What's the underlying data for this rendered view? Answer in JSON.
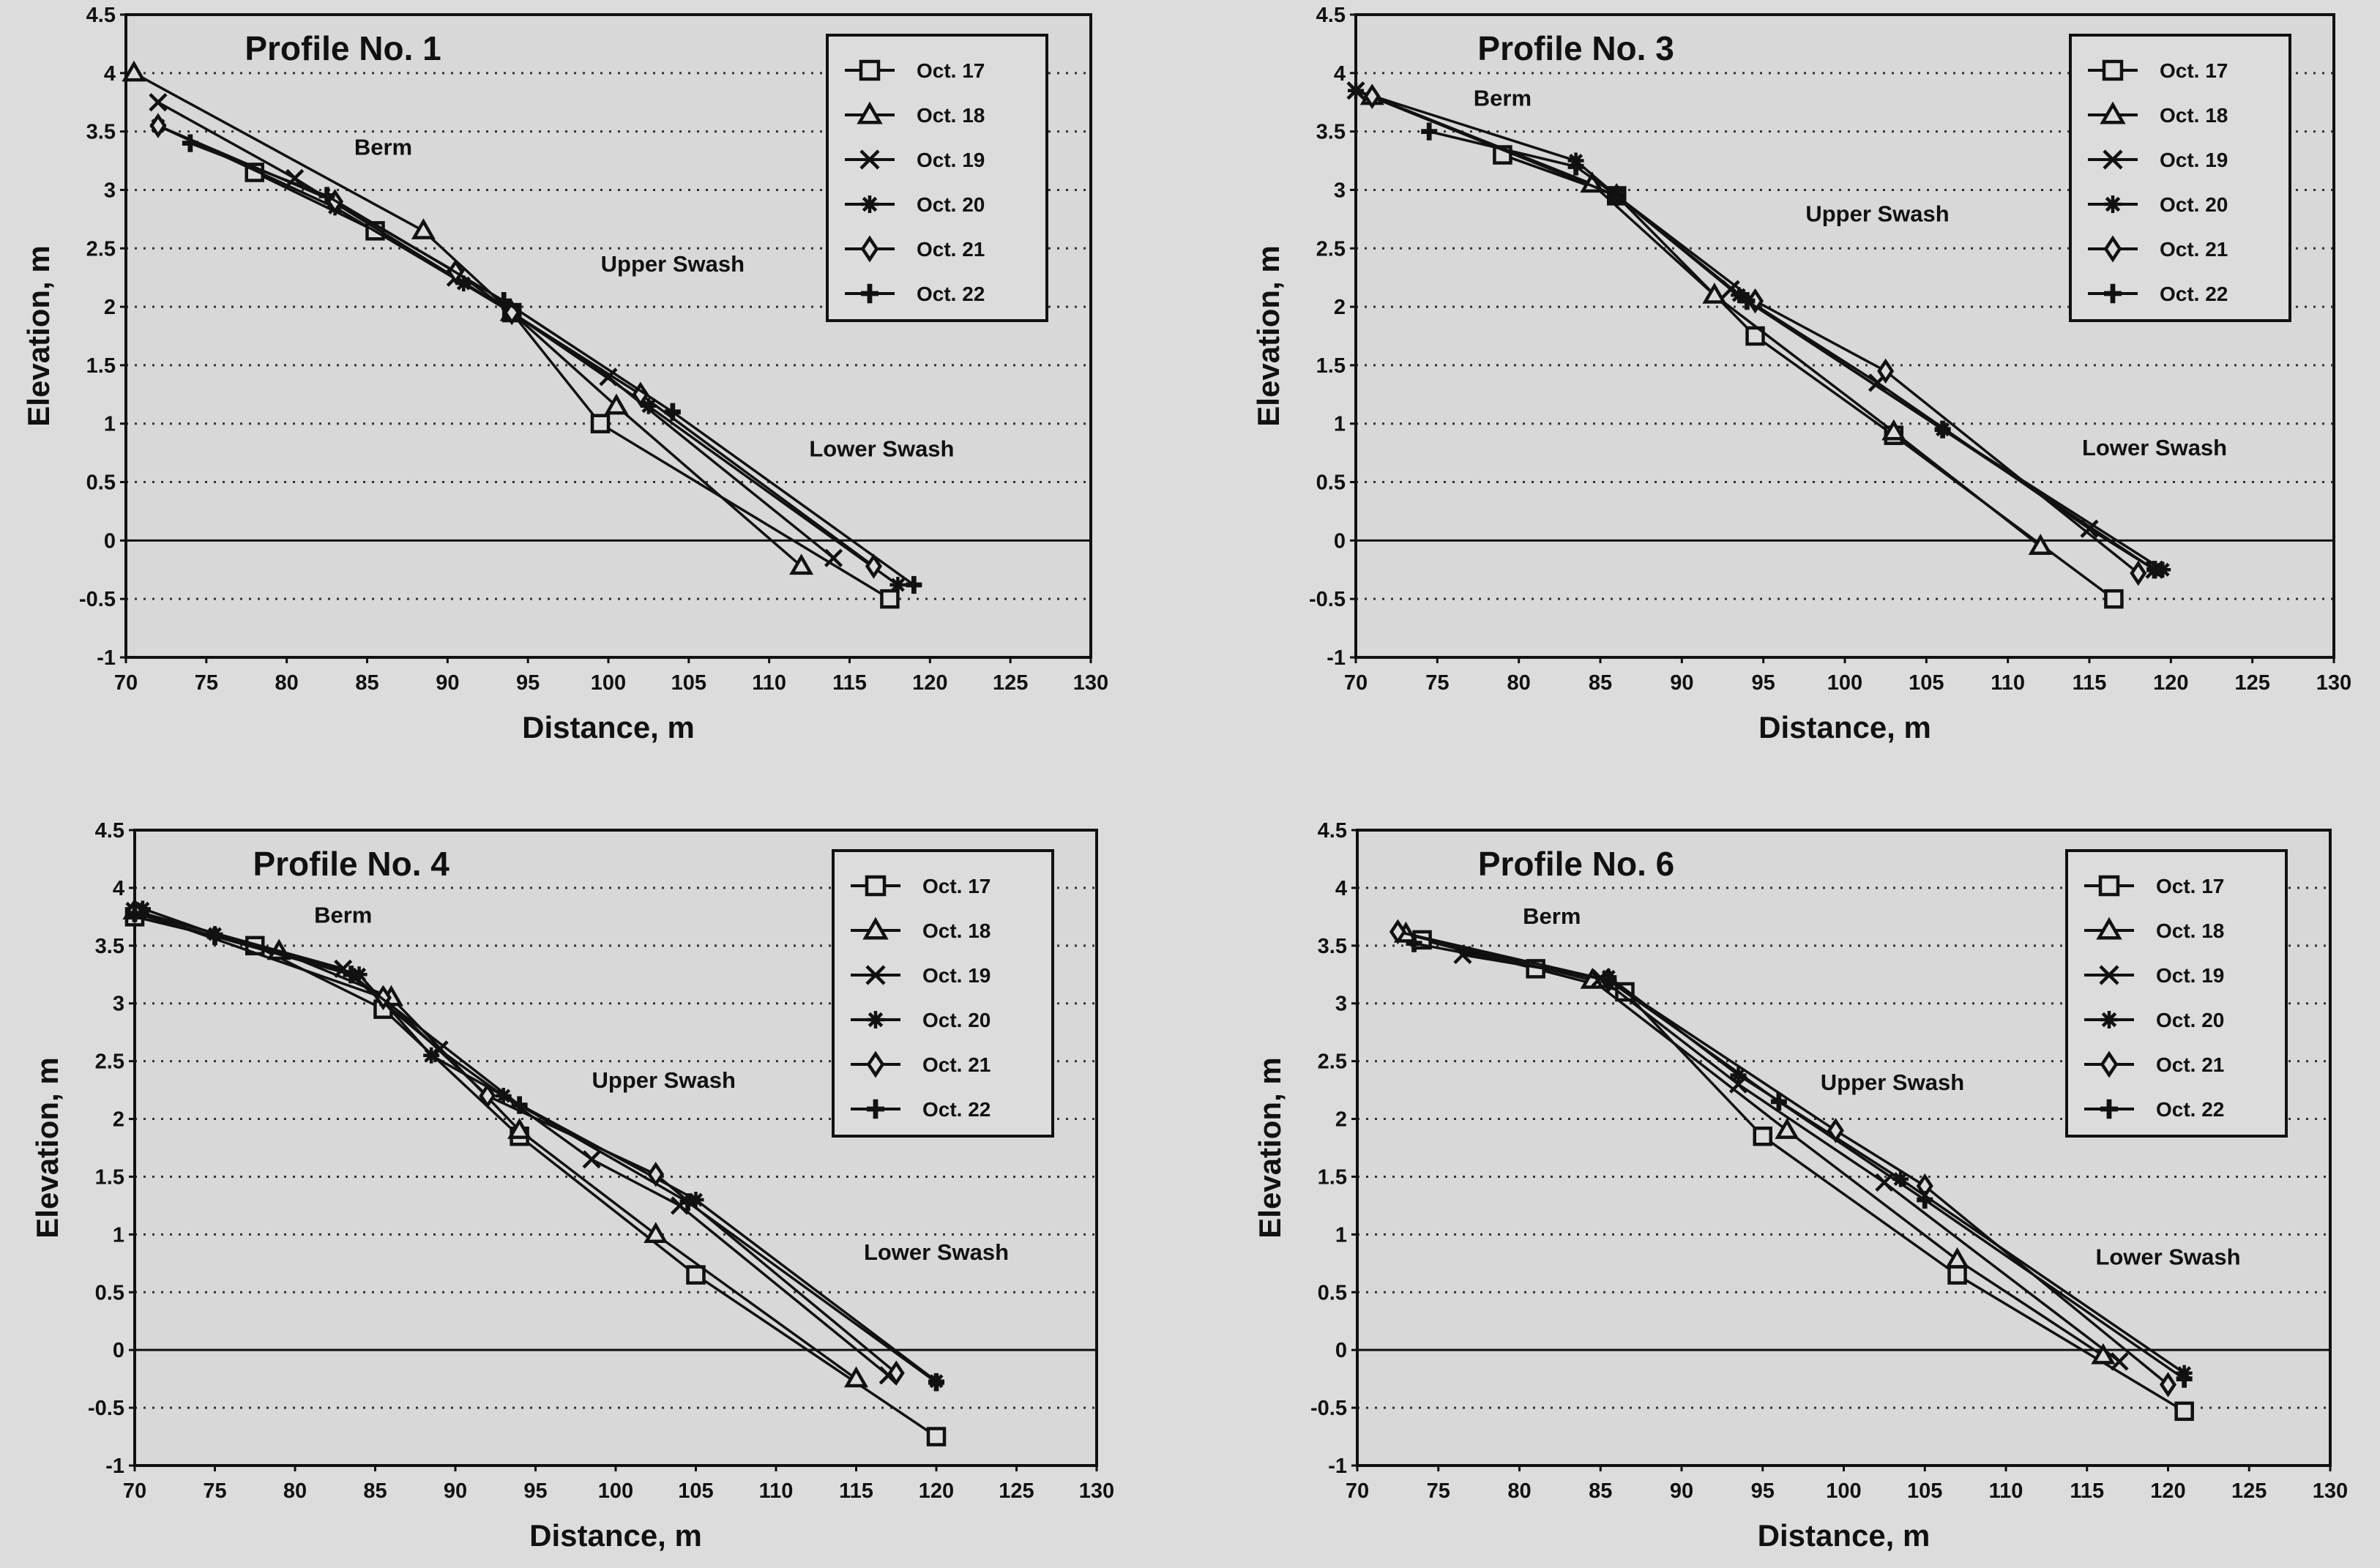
{
  "colors": {
    "background": "#dcdcdc",
    "ink": "#111111",
    "grid": "#333333"
  },
  "chart_data": [
    {
      "type": "line",
      "title": "Profile No. 1",
      "xlabel": "Distance, m",
      "ylabel": "Elevation, m",
      "xlim": [
        70,
        130
      ],
      "ylim": [
        -1,
        4.5
      ],
      "xticks": [
        70,
        75,
        80,
        85,
        90,
        95,
        100,
        105,
        110,
        115,
        120,
        125,
        130
      ],
      "yticks": [
        -1,
        -0.5,
        0,
        0.5,
        1,
        1.5,
        2,
        2.5,
        3,
        3.5,
        4,
        4.5
      ],
      "grid": "horizontal dotted",
      "legend": "top-right",
      "annotations": [
        {
          "text": "Berm",
          "x": 86,
          "y": 3.3
        },
        {
          "text": "Upper Swash",
          "x": 104,
          "y": 2.3
        },
        {
          "text": "Lower Swash",
          "x": 117,
          "y": 0.72
        }
      ],
      "series": [
        {
          "name": "Oct. 17",
          "marker": "square",
          "x": [
            78,
            85.5,
            94,
            99.5,
            117.5
          ],
          "y": [
            3.15,
            2.65,
            1.95,
            1.0,
            -0.5
          ]
        },
        {
          "name": "Oct. 18",
          "marker": "triangle",
          "x": [
            70.5,
            88.5,
            94,
            100.5,
            112
          ],
          "y": [
            4.0,
            2.65,
            1.95,
            1.15,
            -0.22
          ]
        },
        {
          "name": "Oct. 19",
          "marker": "x",
          "x": [
            72,
            80.5,
            90.5,
            94,
            100,
            114
          ],
          "y": [
            3.75,
            3.1,
            2.25,
            1.95,
            1.4,
            -0.15
          ]
        },
        {
          "name": "Oct. 20",
          "marker": "asterisk",
          "x": [
            72,
            83,
            91,
            94,
            102.5,
            118
          ],
          "y": [
            3.55,
            2.85,
            2.2,
            1.95,
            1.15,
            -0.38
          ]
        },
        {
          "name": "Oct. 21",
          "marker": "diamond",
          "x": [
            72,
            83,
            90.5,
            94,
            102,
            116.5
          ],
          "y": [
            3.55,
            2.9,
            2.3,
            1.95,
            1.25,
            -0.22
          ]
        },
        {
          "name": "Oct. 22",
          "marker": "plus",
          "x": [
            74,
            82.5,
            93.5,
            104,
            119
          ],
          "y": [
            3.4,
            2.95,
            2.05,
            1.1,
            -0.38
          ]
        }
      ]
    },
    {
      "type": "line",
      "title": "Profile No. 3",
      "xlabel": "Distance, m",
      "ylabel": "Elevation, m",
      "xlim": [
        70,
        130
      ],
      "ylim": [
        -1,
        4.5
      ],
      "xticks": [
        70,
        75,
        80,
        85,
        90,
        95,
        100,
        105,
        110,
        115,
        120,
        125,
        130
      ],
      "yticks": [
        -1,
        -0.5,
        0,
        0.5,
        1,
        1.5,
        2,
        2.5,
        3,
        3.5,
        4,
        4.5
      ],
      "grid": "horizontal dotted",
      "legend": "top-right",
      "annotations": [
        {
          "text": "Berm",
          "x": 79,
          "y": 3.72
        },
        {
          "text": "Upper Swash",
          "x": 102,
          "y": 2.73
        },
        {
          "text": "Lower Swash",
          "x": 119,
          "y": 0.73
        }
      ],
      "series": [
        {
          "name": "Oct. 17",
          "marker": "square",
          "x": [
            79,
            86,
            94.5,
            103,
            116.5
          ],
          "y": [
            3.3,
            2.95,
            1.75,
            0.9,
            -0.5
          ]
        },
        {
          "name": "Oct. 18",
          "marker": "triangle",
          "x": [
            71,
            84.5,
            92,
            103,
            112
          ],
          "y": [
            3.8,
            3.05,
            2.1,
            0.93,
            -0.05
          ]
        },
        {
          "name": "Oct. 19",
          "marker": "x",
          "x": [
            70,
            86,
            93,
            102,
            115,
            119
          ],
          "y": [
            3.85,
            2.95,
            2.15,
            1.35,
            0.1,
            -0.25
          ]
        },
        {
          "name": "Oct. 20",
          "marker": "asterisk",
          "x": [
            70,
            83.5,
            86,
            93.5,
            106,
            119.5
          ],
          "y": [
            3.85,
            3.25,
            2.95,
            2.1,
            0.95,
            -0.25
          ]
        },
        {
          "name": "Oct. 21",
          "marker": "diamond",
          "x": [
            71,
            86,
            94.5,
            102.5,
            118
          ],
          "y": [
            3.8,
            2.95,
            2.05,
            1.45,
            -0.28
          ]
        },
        {
          "name": "Oct. 22",
          "marker": "plus",
          "x": [
            74.5,
            83.5,
            86,
            94,
            106,
            119
          ],
          "y": [
            3.5,
            3.2,
            2.95,
            2.05,
            0.95,
            -0.25
          ]
        }
      ]
    },
    {
      "type": "line",
      "title": "Profile No. 4",
      "xlabel": "Distance, m",
      "ylabel": "Elevation, m",
      "xlim": [
        70,
        130
      ],
      "ylim": [
        -1,
        4.5
      ],
      "xticks": [
        70,
        75,
        80,
        85,
        90,
        95,
        100,
        105,
        110,
        115,
        120,
        125,
        130
      ],
      "yticks": [
        -1,
        -0.5,
        0,
        0.5,
        1,
        1.5,
        2,
        2.5,
        3,
        3.5,
        4,
        4.5
      ],
      "grid": "horizontal dotted",
      "legend": "top-right",
      "annotations": [
        {
          "text": "Berm",
          "x": 83,
          "y": 3.7
        },
        {
          "text": "Upper Swash",
          "x": 103,
          "y": 2.27
        },
        {
          "text": "Lower Swash",
          "x": 120,
          "y": 0.78
        }
      ],
      "series": [
        {
          "name": "Oct. 17",
          "marker": "square",
          "x": [
            70,
            77.5,
            85.5,
            94,
            105,
            120
          ],
          "y": [
            3.75,
            3.5,
            2.95,
            1.85,
            0.65,
            -0.75
          ]
        },
        {
          "name": "Oct. 18",
          "marker": "triangle",
          "x": [
            70,
            79,
            86,
            94,
            102.5,
            115
          ],
          "y": [
            3.8,
            3.45,
            3.05,
            1.9,
            1.0,
            -0.25
          ]
        },
        {
          "name": "Oct. 19",
          "marker": "x",
          "x": [
            70,
            83,
            89,
            98.5,
            104,
            117
          ],
          "y": [
            3.8,
            3.3,
            2.6,
            1.65,
            1.25,
            -0.22
          ]
        },
        {
          "name": "Oct. 20",
          "marker": "asterisk",
          "x": [
            70.5,
            75,
            84,
            88.5,
            93,
            105,
            120
          ],
          "y": [
            3.82,
            3.6,
            3.25,
            2.55,
            2.2,
            1.3,
            -0.27
          ]
        },
        {
          "name": "Oct. 21",
          "marker": "diamond",
          "x": [
            70,
            85.5,
            92,
            102.5,
            117.5
          ],
          "y": [
            3.8,
            3.05,
            2.2,
            1.52,
            -0.2
          ]
        },
        {
          "name": "Oct. 22",
          "marker": "plus",
          "x": [
            70,
            75,
            83.5,
            94,
            104.5,
            120
          ],
          "y": [
            3.78,
            3.58,
            3.25,
            2.12,
            1.28,
            -0.28
          ]
        }
      ]
    },
    {
      "type": "line",
      "title": "Profile No. 6",
      "xlabel": "Distance, m",
      "ylabel": "Elevation, m",
      "xlim": [
        70,
        130
      ],
      "ylim": [
        -1,
        4.5
      ],
      "xticks": [
        70,
        75,
        80,
        85,
        90,
        95,
        100,
        105,
        110,
        115,
        120,
        125,
        130
      ],
      "yticks": [
        -1,
        -0.5,
        0,
        0.5,
        1,
        1.5,
        2,
        2.5,
        3,
        3.5,
        4,
        4.5
      ],
      "grid": "horizontal dotted",
      "legend": "top-right",
      "annotations": [
        {
          "text": "Berm",
          "x": 82,
          "y": 3.69
        },
        {
          "text": "Upper Swash",
          "x": 103,
          "y": 2.25
        },
        {
          "text": "Lower Swash",
          "x": 120,
          "y": 0.74
        }
      ],
      "series": [
        {
          "name": "Oct. 17",
          "marker": "square",
          "x": [
            74,
            81,
            86.5,
            95,
            107,
            121
          ],
          "y": [
            3.55,
            3.3,
            3.1,
            1.85,
            0.65,
            -0.53
          ]
        },
        {
          "name": "Oct. 18",
          "marker": "triangle",
          "x": [
            73,
            84.5,
            96.5,
            107,
            116
          ],
          "y": [
            3.6,
            3.2,
            1.9,
            0.78,
            -0.05
          ]
        },
        {
          "name": "Oct. 19",
          "marker": "x",
          "x": [
            76.5,
            85,
            93.5,
            102.5,
            117
          ],
          "y": [
            3.42,
            3.22,
            2.3,
            1.45,
            -0.1
          ]
        },
        {
          "name": "Oct. 20",
          "marker": "asterisk",
          "x": [
            85.5,
            93.5,
            103.5,
            121
          ],
          "y": [
            3.23,
            2.38,
            1.48,
            -0.2
          ]
        },
        {
          "name": "Oct. 21",
          "marker": "diamond",
          "x": [
            72.5,
            85.5,
            99.5,
            105,
            120
          ],
          "y": [
            3.62,
            3.2,
            1.9,
            1.42,
            -0.3
          ]
        },
        {
          "name": "Oct. 22",
          "marker": "plus",
          "x": [
            73.5,
            85.5,
            96,
            105,
            121
          ],
          "y": [
            3.52,
            3.2,
            2.15,
            1.3,
            -0.25
          ]
        }
      ]
    }
  ]
}
